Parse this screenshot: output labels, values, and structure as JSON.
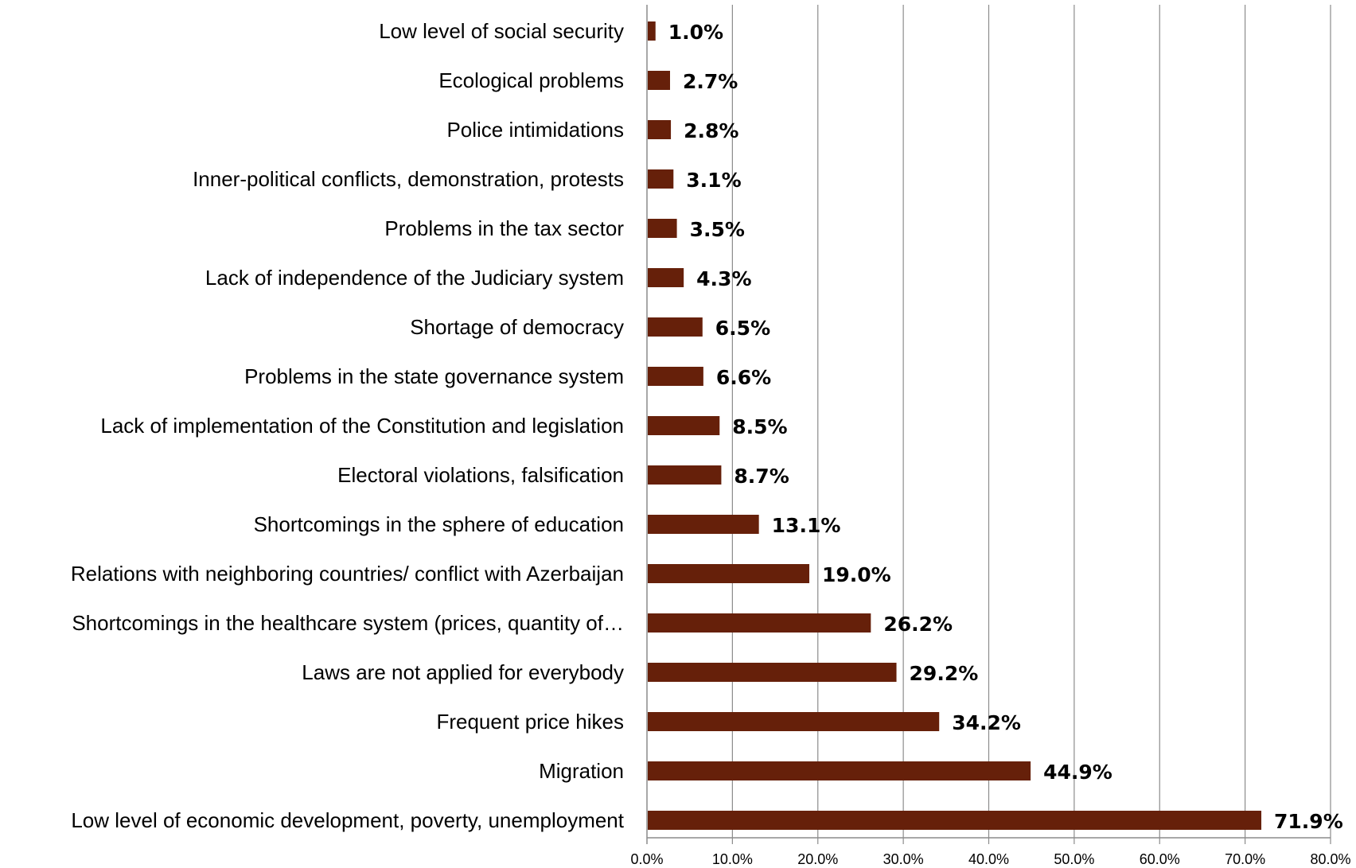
{
  "chart_data": {
    "type": "bar",
    "orientation": "horizontal",
    "title": "",
    "xlabel": "",
    "ylabel": "",
    "xlim": [
      0,
      80
    ],
    "grid": true,
    "legend": "none",
    "bar_color": "#66200a",
    "categories": [
      "Low level of social security",
      "Ecological problems",
      "Police intimidations",
      "Inner-political conflicts, demonstration, protests",
      "Problems in the tax sector",
      "Lack of independence of the Judiciary system",
      "Shortage of democracy",
      "Problems in the state governance system",
      "Lack of implementation of the Constitution and legislation",
      "Electoral violations, falsification",
      "Shortcomings in the sphere of education",
      "Relations with neighboring countries/ conflict with Azerbaijan",
      "Shortcomings in the healthcare system (prices, quantity of…",
      "Laws are not applied for everybody",
      "Frequent price hikes",
      "Migration",
      "Low level of economic development, poverty, unemployment"
    ],
    "values": [
      1.0,
      2.7,
      2.8,
      3.1,
      3.5,
      4.3,
      6.5,
      6.6,
      8.5,
      8.7,
      13.1,
      19.0,
      26.2,
      29.2,
      34.2,
      44.9,
      71.9
    ],
    "value_labels": [
      "1.0%",
      "2.7%",
      "2.8%",
      "3.1%",
      "3.5%",
      "4.3%",
      "6.5%",
      "6.6%",
      "8.5%",
      "8.7%",
      "13.1%",
      "19.0%",
      "26.2%",
      "29.2%",
      "34.2%",
      "44.9%",
      "71.9%"
    ],
    "x_ticks": [
      0,
      10,
      20,
      30,
      40,
      50,
      60,
      70,
      80
    ],
    "x_tick_labels": [
      "0.0%",
      "10.0%",
      "20.0%",
      "30.0%",
      "40.0%",
      "50.0%",
      "60.0%",
      "70.0%",
      "80.0%"
    ]
  }
}
